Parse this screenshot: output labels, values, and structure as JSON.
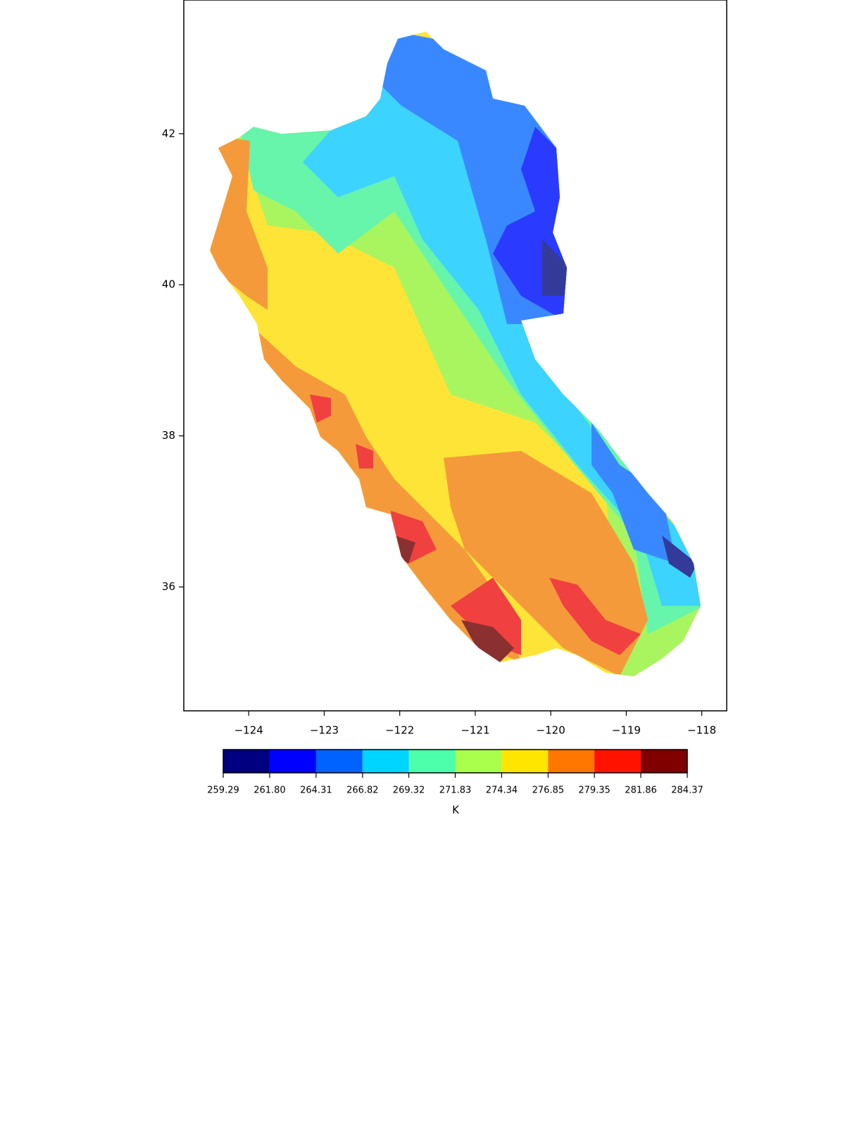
{
  "map": {
    "xlim": [
      -124.86,
      -117.67
    ],
    "ylim": [
      34.36,
      43.77
    ],
    "xticks": [
      {
        "value": -124,
        "label": "−124"
      },
      {
        "value": -123,
        "label": "−123"
      },
      {
        "value": -122,
        "label": "−122"
      },
      {
        "value": -121,
        "label": "−121"
      },
      {
        "value": -120,
        "label": "−120"
      },
      {
        "value": -119,
        "label": "−119"
      },
      {
        "value": -118,
        "label": "−118"
      }
    ],
    "yticks": [
      36,
      38,
      40,
      42
    ]
  },
  "colorbar": {
    "label": "K",
    "lim": [
      259.29,
      284.37
    ],
    "ticks": [
      259.29,
      {
        "value": 261.8,
        "label": "261.80"
      },
      264.31,
      266.82,
      269.32,
      271.83,
      274.34,
      276.85,
      279.35,
      281.86,
      284.37
    ],
    "colors": [
      "#000080",
      "#0000ff",
      "#0062ff",
      "#00d5ff",
      "#4dffaa",
      "#aaff4d",
      "#ffe600",
      "#ff7600",
      "#ff1200",
      "#800000"
    ]
  }
}
